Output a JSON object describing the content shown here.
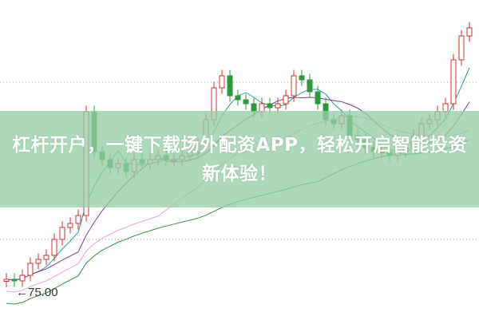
{
  "banner": {
    "title": "杠杆开户，一键下载场外配资APP，轻松开启智能投资新体验！"
  },
  "chart_data": {
    "type": "candlestick",
    "title": "",
    "xlabel": "",
    "ylabel": "",
    "ylim": [
      65.8,
      146
    ],
    "grid": "dotted horizontal",
    "annotation": {
      "label": "75.00",
      "value": 75.0
    },
    "closes": [
      76,
      75.6,
      77,
      80,
      81,
      82,
      86,
      89,
      90,
      92,
      118,
      108,
      106,
      104,
      105,
      103,
      106,
      105,
      106,
      107,
      106,
      106,
      107,
      108,
      110,
      116,
      124,
      127,
      122,
      121,
      120,
      118,
      120,
      119,
      120,
      122,
      127,
      126,
      123,
      120,
      116,
      115,
      117,
      112,
      111,
      109,
      108,
      108,
      107,
      108,
      109,
      112,
      115,
      116,
      118,
      120,
      131,
      137,
      139
    ],
    "moving_averages": [
      {
        "period": 5,
        "color": "#2aa198"
      },
      {
        "period": 10,
        "color": "#7a3f8a"
      },
      {
        "period": 20,
        "color": "#e0a0e0"
      },
      {
        "period": 40,
        "color": "#3a8a4a"
      }
    ],
    "colors": {
      "up": "#d0302f",
      "down": "#2a9a3a",
      "grid": "#999999",
      "banner": "#96cda5"
    }
  }
}
